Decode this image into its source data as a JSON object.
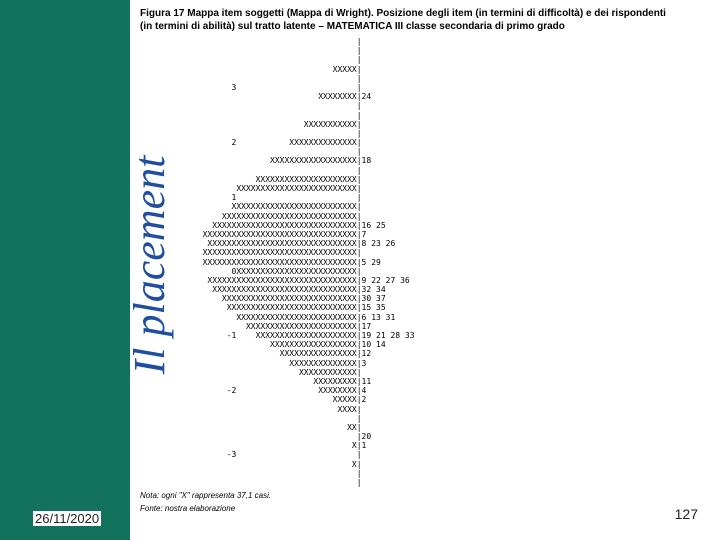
{
  "sidebar": {
    "title": "Il placement",
    "bg_color": "#12725b",
    "title_color": "#1f4ea0"
  },
  "footer": {
    "date": "26/11/2020",
    "page": "127"
  },
  "figure": {
    "title": "Figura 17   Mappa item soggetti (Mappa di Wright). Posizione degli item (in termini di difficoltà) e dei rispondenti (in termini di abilità) sul tratto latente – MATEMATICA III classe secondaria di primo grado",
    "note1": "Nota: ogni \"X\" rappresenta 37,1 casi.",
    "note2": "Fonte: nostra elaborazione",
    "wright_lines": [
      "                                             |",
      "                                             |",
      "                                             |",
      "                                        XXXXX|",
      "                                             |",
      "                   3                         |",
      "                                     XXXXXXXX|24",
      "                                             |",
      "                                             |",
      "                                  XXXXXXXXXXX|",
      "                                             |",
      "                   2           XXXXXXXXXXXXXX|",
      "                                             |",
      "                           XXXXXXXXXXXXXXXXXX|18",
      "                                             |",
      "                        XXXXXXXXXXXXXXXXXXXXX|",
      "                    XXXXXXXXXXXXXXXXXXXXXXXXX|",
      "                   1                         |",
      "                   XXXXXXXXXXXXXXXXXXXXXXXXXX|",
      "                 XXXXXXXXXXXXXXXXXXXXXXXXXXXX|",
      "               XXXXXXXXXXXXXXXXXXXXXXXXXXXXXX|16 25",
      "             XXXXXXXXXXXXXXXXXXXXXXXXXXXXXXXX|7",
      "              XXXXXXXXXXXXXXXXXXXXXXXXXXXXXXX|8 23 26",
      "             XXXXXXXXXXXXXXXXXXXXXXXXXXXXXXXX|",
      "             XXXXXXXXXXXXXXXXXXXXXXXXXXXXXXXX|5 29",
      "                   0XXXXXXXXXXXXXXXXXXXXXXXXX|",
      "              XXXXXXXXXXXXXXXXXXXXXXXXXXXXXXX|9 22 27 36",
      "               XXXXXXXXXXXXXXXXXXXXXXXXXXXXXX|32 34",
      "                 XXXXXXXXXXXXXXXXXXXXXXXXXXXX|30 37",
      "                  XXXXXXXXXXXXXXXXXXXXXXXXXXX|15 35",
      "                    XXXXXXXXXXXXXXXXXXXXXXXXX|6 13 31",
      "                      XXXXXXXXXXXXXXXXXXXXXXX|17",
      "                  -1    XXXXXXXXXXXXXXXXXXXXX|19 21 28 33",
      "                           XXXXXXXXXXXXXXXXXX|10 14",
      "                             XXXXXXXXXXXXXXXX|12",
      "                               XXXXXXXXXXXXXX|3",
      "                                 XXXXXXXXXXXX|",
      "                                    XXXXXXXXX|11",
      "                  -2                 XXXXXXXX|4",
      "                                        XXXXX|2",
      "                                         XXXX|",
      "                                             |",
      "                                           XX|",
      "                                             |20",
      "                                            X|1",
      "                  -3                         |",
      "                                            X|",
      "                                             |",
      "                                             |"
    ]
  }
}
